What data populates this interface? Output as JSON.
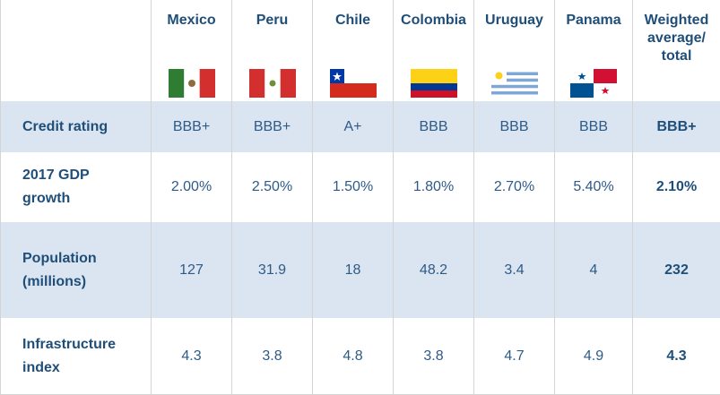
{
  "table": {
    "header": [
      "Mexico",
      "Peru",
      "Chile",
      "Colombia",
      "Uruguay",
      "Panama",
      "Weighted average/ total"
    ],
    "rows": [
      {
        "label": "Credit rating",
        "cells": [
          "BBB+",
          "BBB+",
          "A+",
          "BBB",
          "BBB",
          "BBB",
          "BBB+"
        ]
      },
      {
        "label": "2017 GDP growth",
        "cells": [
          "2.00%",
          "2.50%",
          "1.50%",
          "1.80%",
          "2.70%",
          "5.40%",
          "2.10%"
        ]
      },
      {
        "label": "Population (millions)",
        "cells": [
          "127",
          "31.9",
          "18",
          "48.2",
          "3.4",
          "4",
          "232"
        ]
      },
      {
        "label": "Infrastructure index",
        "cells": [
          "4.3",
          "3.8",
          "4.8",
          "3.8",
          "4.7",
          "4.9",
          "4.3"
        ]
      }
    ]
  }
}
